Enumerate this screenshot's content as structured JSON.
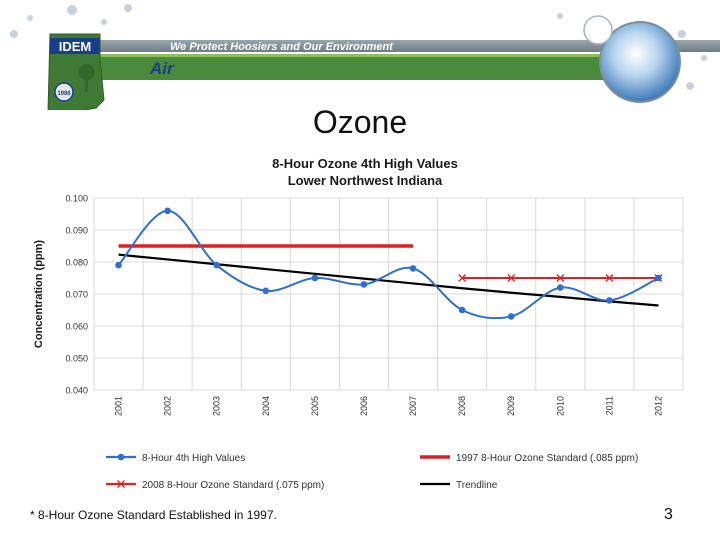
{
  "header": {
    "logo_text": "IDEM",
    "section": "Air",
    "tagline": "We Protect Hoosiers and Our Environment",
    "seal_text": "1986"
  },
  "slide": {
    "title": "Ozone",
    "footnote": "* 8-Hour Ozone Standard Established in 1997.",
    "page_number": "3"
  },
  "colors": {
    "banner_green": "#4a8a3c",
    "tagline_bar": "#7f8f98",
    "series_blue": "#2f6fd0",
    "standard_red": "#e02020",
    "trend_black": "#000000"
  },
  "chart_data": {
    "type": "line",
    "title": "8-Hour Ozone 4th High Values",
    "subtitle": "Lower Northwest Indiana",
    "xlabel": "",
    "ylabel": "Concentration (ppm)",
    "ylim": [
      0.04,
      0.1
    ],
    "y_ticks": [
      "0.040",
      "0.050",
      "0.060",
      "0.070",
      "0.080",
      "0.090",
      "0.100"
    ],
    "categories": [
      "2001",
      "2002",
      "2003",
      "2004",
      "2005",
      "2006",
      "2007",
      "2008",
      "2009",
      "2010",
      "2011",
      "2012"
    ],
    "grid": true,
    "legend_position": "bottom",
    "series": [
      {
        "name": "8-Hour 4th High Values",
        "kind": "smooth-line-markers",
        "color": "#2f6fd0",
        "values": [
          0.079,
          0.096,
          0.079,
          0.071,
          0.075,
          0.073,
          0.078,
          0.065,
          0.063,
          0.072,
          0.068,
          0.075
        ]
      },
      {
        "name": "1997 8-Hour Ozone Standard (.085 ppm)",
        "kind": "line",
        "color": "#e02020",
        "values": [
          0.085,
          0.085,
          0.085,
          0.085,
          0.085,
          0.085,
          0.085,
          null,
          null,
          null,
          null,
          null
        ]
      },
      {
        "name": "2008 8-Hour Ozone Standard (.075 ppm)",
        "kind": "line-x-markers",
        "color": "#e02020",
        "values": [
          null,
          null,
          null,
          null,
          null,
          null,
          null,
          0.075,
          0.075,
          0.075,
          0.075,
          0.075
        ]
      },
      {
        "name": "Trendline",
        "kind": "line",
        "color": "#000000",
        "values": [
          0.0823,
          0.0808,
          0.0793,
          0.0778,
          0.0763,
          0.0748,
          0.0733,
          0.0718,
          0.0704,
          0.0691,
          0.0677,
          0.0664
        ]
      }
    ]
  }
}
